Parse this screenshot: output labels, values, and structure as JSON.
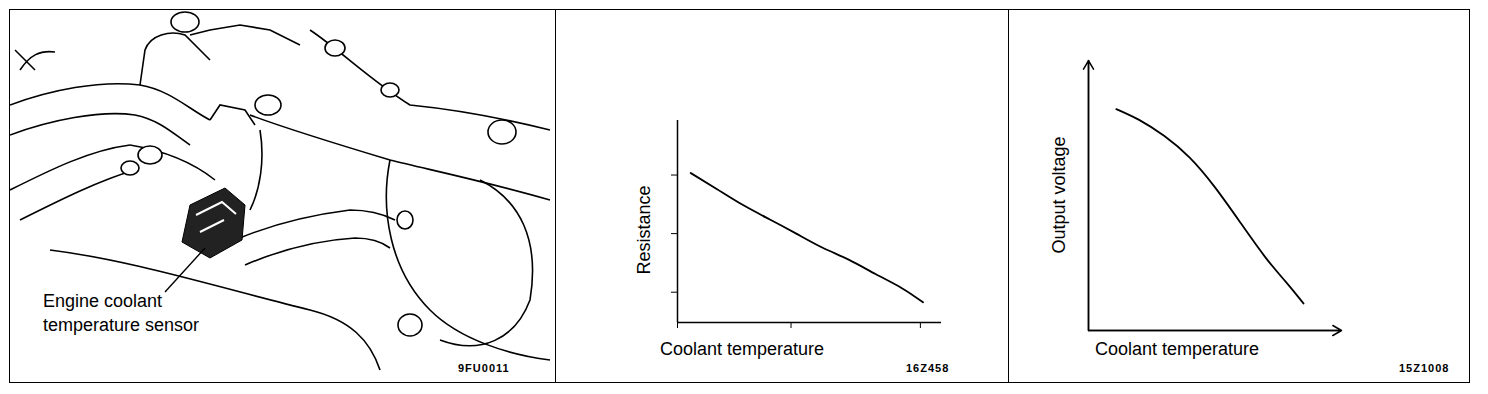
{
  "illustration": {
    "label": [
      "Engine coolant",
      "temperature sensor"
    ],
    "annotations": [
      "9FU0011"
    ]
  },
  "chart_data": [
    {
      "type": "line",
      "x_label": "Coolant temperature",
      "y_label": "Resistance",
      "x": [
        5,
        15,
        25,
        35,
        45,
        55,
        65,
        75,
        85,
        93
      ],
      "values": [
        74,
        66,
        58,
        51,
        44,
        37,
        31,
        24,
        17,
        10
      ],
      "color": "#000000",
      "xlim": [
        0,
        100
      ],
      "ylim": [
        0,
        100
      ],
      "xticks": [
        0,
        43,
        92
      ],
      "yticks": [
        15,
        44,
        73
      ],
      "tick_labels": false,
      "annotations": [
        "16Z458"
      ]
    },
    {
      "type": "line",
      "x_label": "Coolant temperature",
      "y_label": "Output voltage",
      "x": [
        11,
        20,
        30,
        40,
        50,
        60,
        70,
        78,
        85
      ],
      "values": [
        82,
        78,
        72,
        64,
        53,
        40,
        27,
        18,
        10
      ],
      "color": "#000000",
      "xlim": [
        0,
        100
      ],
      "ylim": [
        0,
        100
      ],
      "xticks": [],
      "yticks": [],
      "tick_labels": false,
      "annotations": [
        "15Z1008"
      ]
    }
  ]
}
